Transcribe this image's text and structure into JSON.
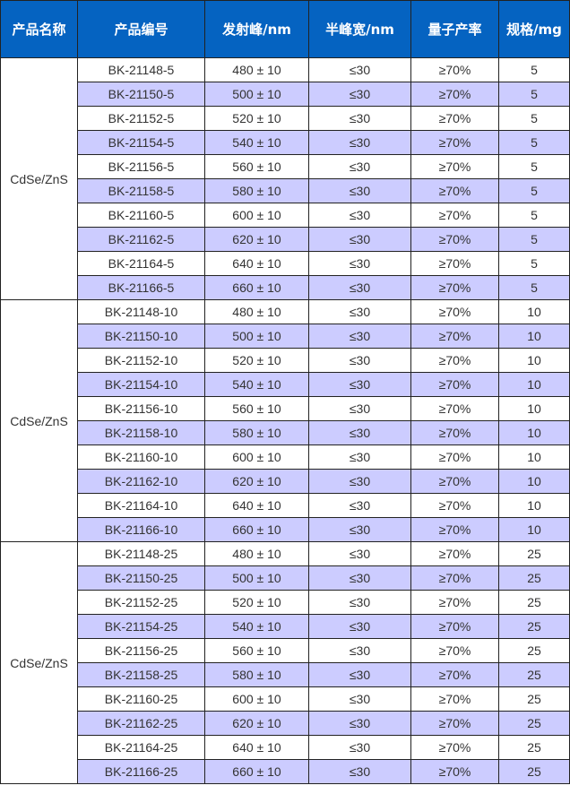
{
  "colors": {
    "header_bg": "#0563c1",
    "band": "#ccccff"
  },
  "headers": [
    "产品名称",
    "产品编号",
    "发射峰/nm",
    "半峰宽/nm",
    "量子产率",
    "规格/mg"
  ],
  "groups": [
    {
      "name": "CdSe/ZnS",
      "rows": [
        [
          "BK-21148-5",
          "480 ± 10",
          "≤30",
          "≥70%",
          "5"
        ],
        [
          "BK-21150-5",
          "500 ± 10",
          "≤30",
          "≥70%",
          "5"
        ],
        [
          "BK-21152-5",
          "520 ± 10",
          "≤30",
          "≥70%",
          "5"
        ],
        [
          "BK-21154-5",
          "540 ± 10",
          "≤30",
          "≥70%",
          "5"
        ],
        [
          "BK-21156-5",
          "560 ± 10",
          "≤30",
          "≥70%",
          "5"
        ],
        [
          "BK-21158-5",
          "580 ± 10",
          "≤30",
          "≥70%",
          "5"
        ],
        [
          "BK-21160-5",
          "600 ± 10",
          "≤30",
          "≥70%",
          "5"
        ],
        [
          "BK-21162-5",
          "620 ± 10",
          "≤30",
          "≥70%",
          "5"
        ],
        [
          "BK-21164-5",
          "640 ± 10",
          "≤30",
          "≥70%",
          "5"
        ],
        [
          "BK-21166-5",
          "660 ± 10",
          "≤30",
          "≥70%",
          "5"
        ]
      ]
    },
    {
      "name": "CdSe/ZnS",
      "rows": [
        [
          "BK-21148-10",
          "480 ± 10",
          "≤30",
          "≥70%",
          "10"
        ],
        [
          "BK-21150-10",
          "500 ± 10",
          "≤30",
          "≥70%",
          "10"
        ],
        [
          "BK-21152-10",
          "520 ± 10",
          "≤30",
          "≥70%",
          "10"
        ],
        [
          "BK-21154-10",
          "540 ± 10",
          "≤30",
          "≥70%",
          "10"
        ],
        [
          "BK-21156-10",
          "560 ± 10",
          "≤30",
          "≥70%",
          "10"
        ],
        [
          "BK-21158-10",
          "580 ± 10",
          "≤30",
          "≥70%",
          "10"
        ],
        [
          "BK-21160-10",
          "600 ± 10",
          "≤30",
          "≥70%",
          "10"
        ],
        [
          "BK-21162-10",
          "620 ± 10",
          "≤30",
          "≥70%",
          "10"
        ],
        [
          "BK-21164-10",
          "640 ± 10",
          "≤30",
          "≥70%",
          "10"
        ],
        [
          "BK-21166-10",
          "660 ± 10",
          "≤30",
          "≥70%",
          "10"
        ]
      ]
    },
    {
      "name": "CdSe/ZnS",
      "rows": [
        [
          "BK-21148-25",
          "480 ± 10",
          "≤30",
          "≥70%",
          "25"
        ],
        [
          "BK-21150-25",
          "500 ± 10",
          "≤30",
          "≥70%",
          "25"
        ],
        [
          "BK-21152-25",
          "520 ± 10",
          "≤30",
          "≥70%",
          "25"
        ],
        [
          "BK-21154-25",
          "540 ± 10",
          "≤30",
          "≥70%",
          "25"
        ],
        [
          "BK-21156-25",
          "560 ± 10",
          "≤30",
          "≥70%",
          "25"
        ],
        [
          "BK-21158-25",
          "580 ± 10",
          "≤30",
          "≥70%",
          "25"
        ],
        [
          "BK-21160-25",
          "600 ± 10",
          "≤30",
          "≥70%",
          "25"
        ],
        [
          "BK-21162-25",
          "620 ± 10",
          "≤30",
          "≥70%",
          "25"
        ],
        [
          "BK-21164-25",
          "640 ± 10",
          "≤30",
          "≥70%",
          "25"
        ],
        [
          "BK-21166-25",
          "660 ± 10",
          "≤30",
          "≥70%",
          "25"
        ]
      ]
    }
  ]
}
